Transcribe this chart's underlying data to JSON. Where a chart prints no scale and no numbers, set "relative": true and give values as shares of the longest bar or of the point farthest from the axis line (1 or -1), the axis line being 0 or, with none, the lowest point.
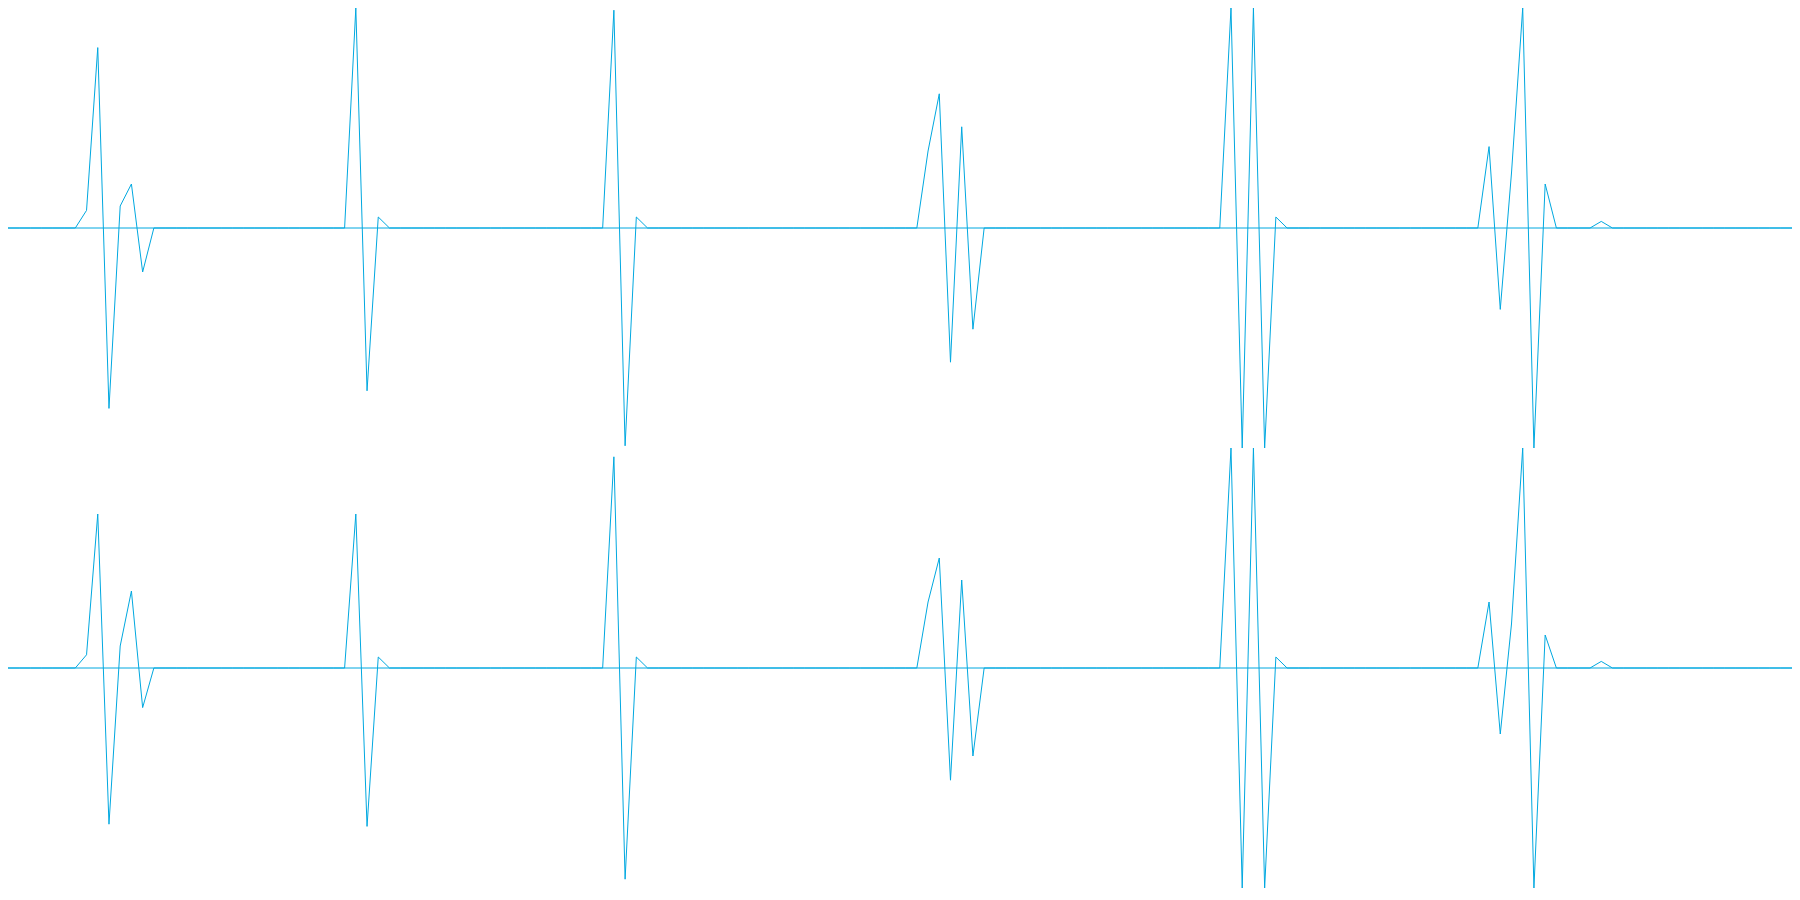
{
  "chart_data": [
    {
      "type": "line",
      "relative": true,
      "color": "#00a8e0",
      "ref_lines": [
        {
          "axis": "y",
          "value": 0,
          "color": "#00a8e0"
        }
      ],
      "categories": [
        null,
        null,
        null,
        null,
        null,
        null,
        null,
        null,
        null,
        null,
        null,
        null,
        null,
        null,
        null,
        null,
        null,
        null,
        null,
        null,
        null,
        null,
        null,
        null,
        null,
        null,
        null,
        null,
        null,
        null,
        null,
        null,
        null,
        null,
        null,
        null,
        null,
        null,
        null,
        null,
        null,
        null,
        null,
        null,
        null,
        null,
        null,
        null,
        null,
        null,
        null,
        null,
        null,
        null,
        null,
        null,
        null,
        null,
        null,
        null,
        null,
        null,
        null,
        null,
        null,
        null,
        null,
        null,
        null,
        null,
        null,
        null,
        null,
        null,
        null,
        null,
        null,
        null,
        null,
        null,
        null,
        null,
        null,
        null,
        null,
        null,
        null,
        null,
        null,
        null,
        null,
        null,
        null,
        null,
        null,
        null,
        null,
        null,
        null,
        null,
        null,
        null,
        null,
        null,
        null,
        null,
        null,
        null,
        null,
        null,
        null,
        null,
        null,
        null,
        null,
        null,
        null,
        null,
        null,
        null,
        null,
        null,
        null,
        null,
        null,
        null,
        null,
        null,
        null,
        null,
        null,
        null,
        null,
        null,
        null,
        null,
        null,
        null,
        null,
        null,
        null,
        null,
        null,
        null,
        null,
        null,
        null,
        null,
        null,
        null,
        null,
        null,
        null,
        null,
        null,
        null,
        null,
        null,
        null,
        null
      ],
      "values": [
        0,
        0,
        0,
        0,
        0,
        0,
        0,
        0.08,
        0.82,
        -0.82,
        0.1,
        0.2,
        -0.2,
        0,
        0,
        0,
        0,
        0,
        0,
        0,
        0,
        0,
        0,
        0,
        0,
        0,
        0,
        0,
        0,
        0,
        0,
        1,
        -0.74,
        0.05,
        0,
        0,
        0,
        0,
        0,
        0,
        0,
        0,
        0,
        0,
        0,
        0,
        0,
        0,
        0,
        0,
        0,
        0,
        0,
        0,
        0.99,
        -0.99,
        0.05,
        0,
        0,
        0,
        0,
        0,
        0,
        0,
        0,
        0,
        0,
        0,
        0,
        0,
        0,
        0,
        0,
        0,
        0,
        0,
        0,
        0,
        0,
        0,
        0,
        0,
        0.35,
        0.61,
        -0.61,
        0.46,
        -0.46,
        0,
        0,
        0,
        0,
        0,
        0,
        0,
        0,
        0,
        0,
        0,
        0,
        0,
        0,
        0,
        0,
        0,
        0,
        0,
        0,
        0,
        0,
        1,
        -1,
        1,
        -1,
        0.05,
        0,
        0,
        0,
        0,
        0,
        0,
        0,
        0,
        0,
        0,
        0,
        0,
        0,
        0,
        0,
        0,
        0,
        0,
        0.37,
        -0.37,
        0.25,
        1,
        -1,
        0.2,
        0,
        0,
        0,
        0,
        0.03,
        0,
        0,
        0,
        0,
        0,
        0,
        0,
        0,
        0,
        0,
        0,
        0,
        0,
        0,
        0,
        0,
        0
      ]
    },
    {
      "type": "line",
      "relative": true,
      "color": "#00a8e0",
      "ref_lines": [
        {
          "axis": "y",
          "value": 0,
          "color": "#00a8e0"
        }
      ],
      "categories": [
        null,
        null,
        null,
        null,
        null,
        null,
        null,
        null,
        null,
        null,
        null,
        null,
        null,
        null,
        null,
        null,
        null,
        null,
        null,
        null,
        null,
        null,
        null,
        null,
        null,
        null,
        null,
        null,
        null,
        null,
        null,
        null,
        null,
        null,
        null,
        null,
        null,
        null,
        null,
        null,
        null,
        null,
        null,
        null,
        null,
        null,
        null,
        null,
        null,
        null,
        null,
        null,
        null,
        null,
        null,
        null,
        null,
        null,
        null,
        null,
        null,
        null,
        null,
        null,
        null,
        null,
        null,
        null,
        null,
        null,
        null,
        null,
        null,
        null,
        null,
        null,
        null,
        null,
        null,
        null,
        null,
        null,
        null,
        null,
        null,
        null,
        null,
        null,
        null,
        null,
        null,
        null,
        null,
        null,
        null,
        null,
        null,
        null,
        null,
        null,
        null,
        null,
        null,
        null,
        null,
        null,
        null,
        null,
        null,
        null,
        null,
        null,
        null,
        null,
        null,
        null,
        null,
        null,
        null,
        null,
        null,
        null,
        null,
        null,
        null,
        null,
        null,
        null,
        null,
        null,
        null,
        null,
        null,
        null,
        null,
        null,
        null,
        null,
        null,
        null,
        null,
        null,
        null,
        null,
        null,
        null,
        null,
        null,
        null,
        null,
        null,
        null,
        null,
        null,
        null,
        null,
        null,
        null,
        null,
        null
      ],
      "values": [
        0,
        0,
        0,
        0,
        0,
        0,
        0,
        0.06,
        0.7,
        -0.71,
        0.1,
        0.35,
        -0.18,
        0,
        0,
        0,
        0,
        0,
        0,
        0,
        0,
        0,
        0,
        0,
        0,
        0,
        0,
        0,
        0,
        0,
        0,
        0.7,
        -0.72,
        0.05,
        0,
        0,
        0,
        0,
        0,
        0,
        0,
        0,
        0,
        0,
        0,
        0,
        0,
        0,
        0,
        0,
        0,
        0,
        0,
        0,
        0.96,
        -0.96,
        0.05,
        0,
        0,
        0,
        0,
        0,
        0,
        0,
        0,
        0,
        0,
        0,
        0,
        0,
        0,
        0,
        0,
        0,
        0,
        0,
        0,
        0,
        0,
        0,
        0,
        0,
        0.3,
        0.5,
        -0.51,
        0.4,
        -0.4,
        0,
        0,
        0,
        0,
        0,
        0,
        0,
        0,
        0,
        0,
        0,
        0,
        0,
        0,
        0,
        0,
        0,
        0,
        0,
        0,
        0,
        0,
        1,
        -1,
        1,
        -1,
        0.05,
        0,
        0,
        0,
        0,
        0,
        0,
        0,
        0,
        0,
        0,
        0,
        0,
        0,
        0,
        0,
        0,
        0,
        0,
        0.3,
        -0.3,
        0.2,
        1,
        -1,
        0.15,
        0,
        0,
        0,
        0,
        0.03,
        0,
        0,
        0,
        0,
        0,
        0,
        0,
        0,
        0,
        0,
        0,
        0,
        0,
        0,
        0,
        0,
        0
      ]
    }
  ]
}
